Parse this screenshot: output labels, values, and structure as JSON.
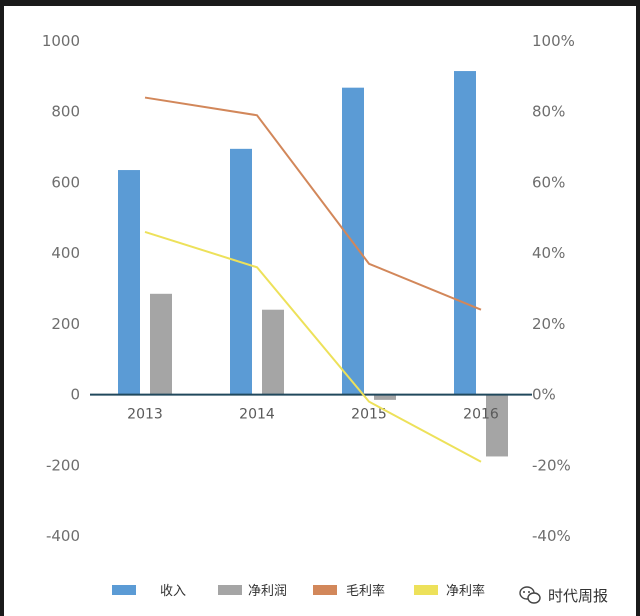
{
  "chart_data": {
    "type": "bar",
    "categories": [
      "2013",
      "2014",
      "2015",
      "2016"
    ],
    "series": [
      {
        "name": "收入",
        "kind": "bar",
        "axis": "left",
        "color": "#5b9bd5",
        "values": [
          635,
          695,
          868,
          915
        ]
      },
      {
        "name": "净利润",
        "kind": "bar",
        "axis": "left",
        "color": "#a5a5a5",
        "values": [
          285,
          240,
          -15,
          -175
        ]
      },
      {
        "name": "毛利率",
        "kind": "line",
        "axis": "right",
        "color": "#d2875a",
        "values": [
          84,
          79,
          37,
          24
        ]
      },
      {
        "name": "净利率",
        "kind": "line",
        "axis": "right",
        "color": "#ede15a",
        "values": [
          46,
          36,
          -2,
          -19
        ]
      }
    ],
    "left_axis": {
      "ylim": [
        -400,
        1000
      ],
      "ticks": [
        1000,
        800,
        600,
        400,
        200,
        0,
        -200,
        -400
      ]
    },
    "right_axis": {
      "ylim": [
        -40,
        100
      ],
      "ticks": [
        "100%",
        "80%",
        "60%",
        "40%",
        "20%",
        "0%",
        "-20%",
        "-40%"
      ]
    },
    "grid": false,
    "legend": "bottom"
  },
  "watermark": {
    "text": "时代周报",
    "icon": "wechat-icon"
  }
}
